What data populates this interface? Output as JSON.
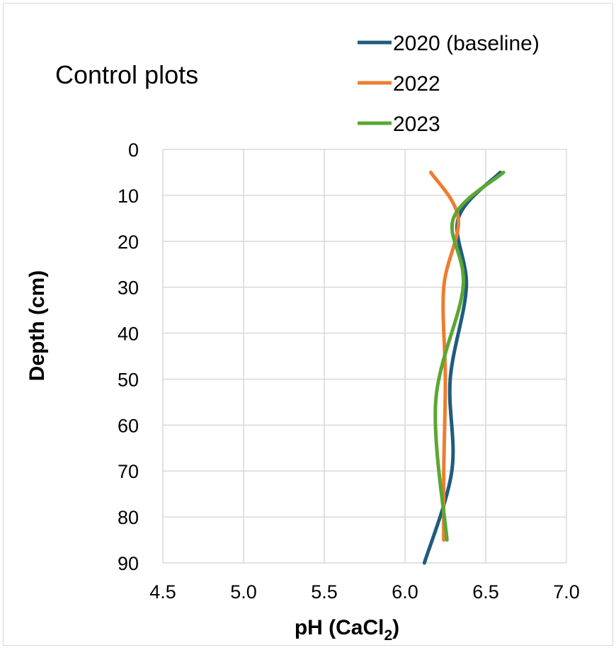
{
  "chart_data": {
    "type": "line",
    "title": "Control plots",
    "xlabel": "pH (CaCl",
    "xlabel_subscript": "2",
    "xlabel_suffix": ")",
    "ylabel": "Depth (cm)",
    "xlim": [
      4.5,
      7.0
    ],
    "ylim": [
      0,
      90
    ],
    "y_inverted": true,
    "grid": true,
    "legend_position": "top-right",
    "x_ticks": [
      "4.5",
      "5.0",
      "5.5",
      "6.0",
      "6.5",
      "7.0"
    ],
    "y_ticks": [
      "0",
      "10",
      "20",
      "30",
      "40",
      "50",
      "60",
      "70",
      "80",
      "90"
    ],
    "series": [
      {
        "name": "2020 (baseline)",
        "color": "#1f5c7e",
        "points": [
          [
            6.59,
            5
          ],
          [
            6.33,
            15
          ],
          [
            6.38,
            30
          ],
          [
            6.28,
            50
          ],
          [
            6.29,
            70
          ],
          [
            6.12,
            90
          ]
        ]
      },
      {
        "name": "2022",
        "color": "#ed7d31",
        "points": [
          [
            6.16,
            5
          ],
          [
            6.33,
            15
          ],
          [
            6.24,
            30
          ],
          [
            6.25,
            50
          ],
          [
            6.24,
            70
          ],
          [
            6.24,
            85
          ]
        ]
      },
      {
        "name": "2023",
        "color": "#5aa732",
        "points": [
          [
            6.61,
            5
          ],
          [
            6.3,
            15
          ],
          [
            6.36,
            30
          ],
          [
            6.19,
            55
          ],
          [
            6.26,
            85
          ]
        ]
      }
    ]
  }
}
